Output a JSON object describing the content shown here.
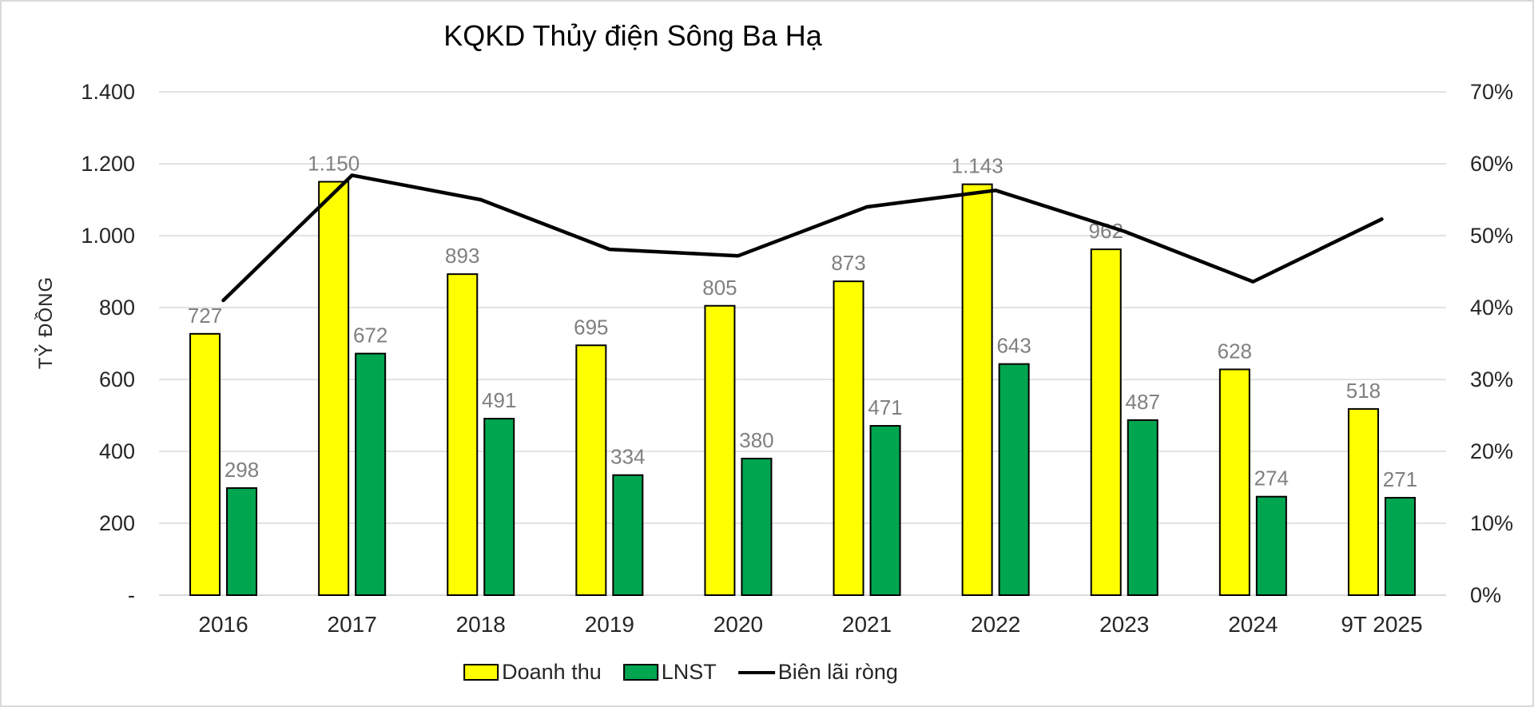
{
  "page": {
    "background": "#FFFFFF",
    "frame_border": "#D9D9D9"
  },
  "chart_data": {
    "type": "combo",
    "subtypes": [
      "bar",
      "bar",
      "line"
    ],
    "title": "KQKD Thủy điện Sông Ba Hạ",
    "categories": [
      "2016",
      "2017",
      "2018",
      "2019",
      "2020",
      "2021",
      "2022",
      "2023",
      "2024",
      "9T 2025"
    ],
    "series": [
      {
        "name": "Doanh thu",
        "type": "bar",
        "color": "#FFFF00",
        "border_color": "#000000",
        "axis": "left",
        "values": [
          727,
          1150,
          893,
          695,
          805,
          873,
          1143,
          962,
          628,
          518
        ],
        "labels": [
          "727",
          "1.150",
          "893",
          "695",
          "805",
          "873",
          "1.143",
          "962",
          "628",
          "518"
        ]
      },
      {
        "name": "LNST",
        "type": "bar",
        "color": "#00A550",
        "border_color": "#000000",
        "axis": "left",
        "values": [
          298,
          672,
          491,
          334,
          380,
          471,
          643,
          487,
          274,
          271
        ],
        "labels": [
          "298",
          "672",
          "491",
          "334",
          "380",
          "471",
          "643",
          "487",
          "274",
          "271"
        ]
      },
      {
        "name": "Biên lãi ròng",
        "type": "line",
        "color": "#000000",
        "axis": "right",
        "values_pct": [
          41.0,
          58.4,
          55.0,
          48.1,
          47.2,
          54.0,
          56.3,
          50.6,
          43.6,
          52.3
        ]
      }
    ],
    "left_axis": {
      "title": "TỶ ĐỒNG",
      "min": 0,
      "max": 1400,
      "tick_step": 200,
      "ticks": [
        "-",
        "200",
        "400",
        "600",
        "800",
        "1.000",
        "1.200",
        "1.400"
      ]
    },
    "right_axis": {
      "min": 0,
      "max": 70,
      "tick_step": 10,
      "ticks": [
        "0%",
        "10%",
        "20%",
        "30%",
        "40%",
        "50%",
        "60%",
        "70%"
      ]
    },
    "legend_position": "bottom",
    "grid": true,
    "styles": {
      "gridline_color": "#D9D9D9",
      "tick_label_color": "#262626",
      "data_label_color": "#808080",
      "line_width": 4.5,
      "bar_border_width": 2
    }
  }
}
